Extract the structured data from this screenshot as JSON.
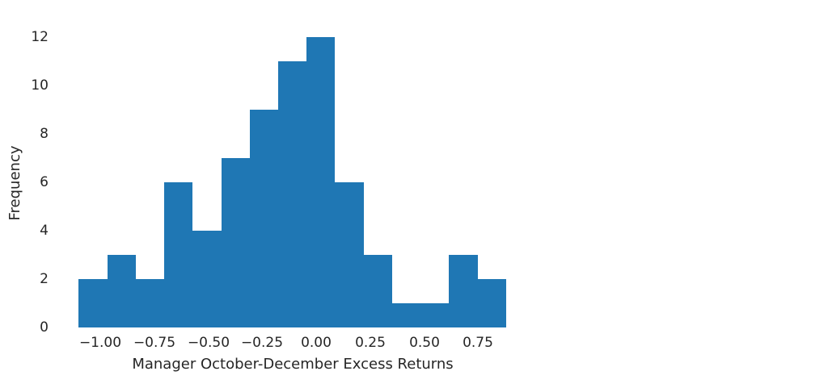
{
  "chart_data": {
    "type": "bar",
    "variant": "histogram",
    "title": "",
    "xlabel": "Manager October-December Excess Returns",
    "ylabel": "Frequency",
    "bar_color": "#1f77b4",
    "text_color": "#262626",
    "background_color": "#ffffff",
    "bin_edges": [
      -1.1,
      -0.968,
      -0.836,
      -0.704,
      -0.572,
      -0.44,
      -0.308,
      -0.176,
      -0.044,
      0.088,
      0.22,
      0.352,
      0.484,
      0.616,
      0.748,
      0.88
    ],
    "counts": [
      2,
      3,
      2,
      6,
      4,
      7,
      9,
      11,
      12,
      6,
      3,
      1,
      1,
      3,
      2
    ],
    "x_ticks": [
      -1.0,
      -0.75,
      -0.5,
      -0.25,
      0.0,
      0.25,
      0.5,
      0.75
    ],
    "x_tick_labels": [
      "−1.00",
      "−0.75",
      "−0.50",
      "−0.25",
      "0.00",
      "0.25",
      "0.50",
      "0.75"
    ],
    "y_ticks": [
      0,
      2,
      4,
      6,
      8,
      10,
      12
    ],
    "y_tick_labels": [
      "0",
      "2",
      "4",
      "6",
      "8",
      "10",
      "12"
    ],
    "xlim": [
      -1.22,
      1.1
    ],
    "ylim": [
      0,
      12.6
    ],
    "grid": false,
    "legend": "none",
    "spines": "none"
  }
}
